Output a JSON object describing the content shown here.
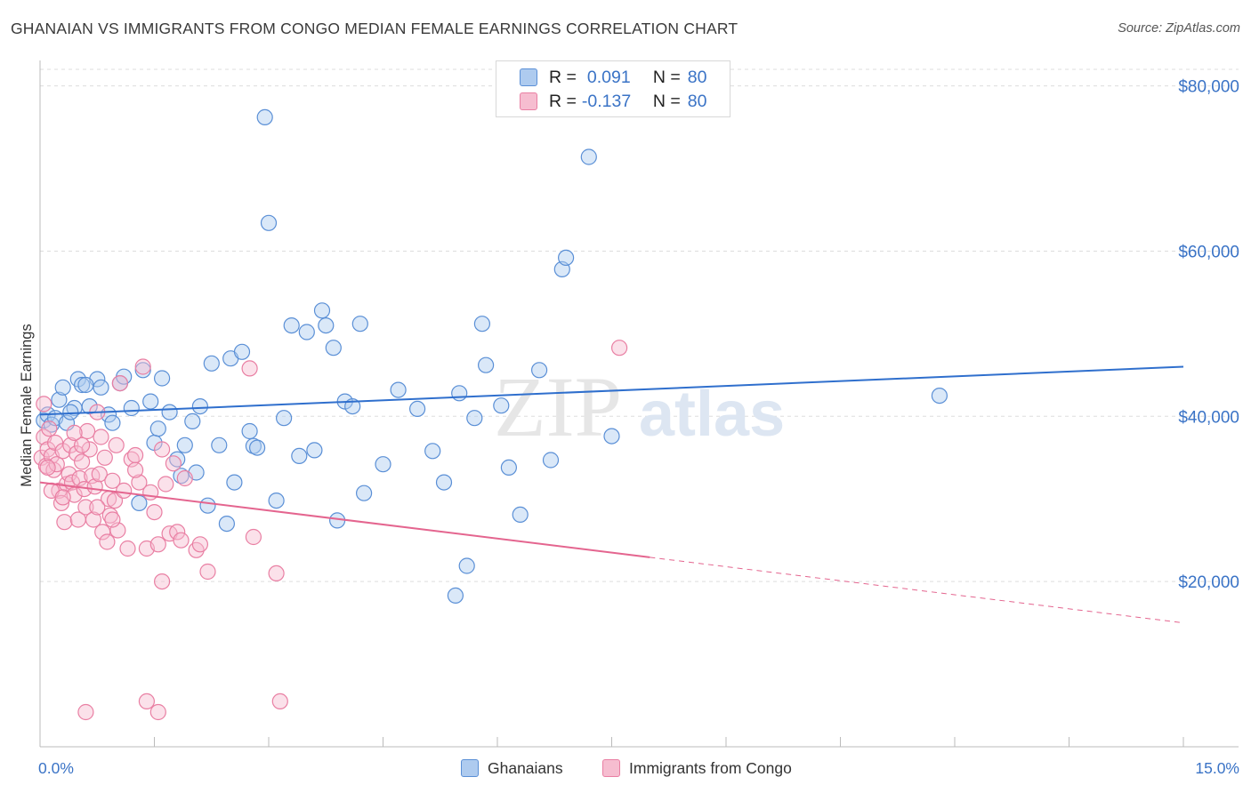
{
  "title": "GHANAIAN VS IMMIGRANTS FROM CONGO MEDIAN FEMALE EARNINGS CORRELATION CHART",
  "source": "Source: ZipAtlas.com",
  "watermark": {
    "part1": "ZIP",
    "part2": "atlas"
  },
  "legend": {
    "r_label": "R =",
    "n_label": "N =",
    "rows": [
      {
        "r_value": "0.091",
        "n_value": "80"
      },
      {
        "r_value": "-0.137",
        "n_value": "80"
      }
    ]
  },
  "bottom_legend": [
    "Ghanaians",
    "Immigrants from Congo"
  ],
  "colors": {
    "blue_fill": "#aecbef",
    "blue_stroke": "#5a8fd6",
    "blue_line": "#2f6fcd",
    "pink_fill": "#f6bdd0",
    "pink_stroke": "#e97fa3",
    "pink_line": "#e4658f",
    "axis_text": "#3a73c6",
    "grid": "#dddddd"
  },
  "chart_data": {
    "type": "scatter",
    "xlabel": "",
    "ylabel": "Median Female Earnings",
    "xlim": [
      0,
      15
    ],
    "ylim": [
      0,
      82000
    ],
    "x_tick_labels": [
      "0.0%",
      "15.0%"
    ],
    "y_ticks": [
      20000,
      40000,
      60000,
      80000
    ],
    "y_tick_labels": [
      "$20,000",
      "$40,000",
      "$60,000",
      "$80,000"
    ],
    "legend_position": "top-center",
    "series": [
      {
        "name": "Ghanaians",
        "r": 0.091,
        "n": 80,
        "trend": {
          "x": [
            0.0,
            15.0
          ],
          "y": [
            40200,
            46000
          ],
          "dashed_from": null
        },
        "points": [
          [
            0.05,
            39500
          ],
          [
            0.1,
            40200
          ],
          [
            0.15,
            39000
          ],
          [
            0.2,
            39800
          ],
          [
            0.25,
            42000
          ],
          [
            0.3,
            43500
          ],
          [
            0.35,
            39200
          ],
          [
            0.45,
            41000
          ],
          [
            0.5,
            44500
          ],
          [
            0.55,
            43800
          ],
          [
            0.65,
            41200
          ],
          [
            0.75,
            44500
          ],
          [
            0.8,
            43500
          ],
          [
            0.9,
            40200
          ],
          [
            0.95,
            39200
          ],
          [
            1.05,
            44000
          ],
          [
            1.1,
            44800
          ],
          [
            1.2,
            41000
          ],
          [
            1.3,
            29500
          ],
          [
            1.35,
            45600
          ],
          [
            1.45,
            41800
          ],
          [
            1.5,
            36800
          ],
          [
            1.55,
            38500
          ],
          [
            1.6,
            44600
          ],
          [
            1.7,
            40500
          ],
          [
            1.8,
            34800
          ],
          [
            1.85,
            32800
          ],
          [
            1.9,
            36500
          ],
          [
            2.0,
            39400
          ],
          [
            2.05,
            33200
          ],
          [
            2.1,
            41200
          ],
          [
            2.2,
            29200
          ],
          [
            2.25,
            46400
          ],
          [
            2.35,
            36500
          ],
          [
            2.45,
            27000
          ],
          [
            2.5,
            47000
          ],
          [
            2.55,
            32000
          ],
          [
            2.65,
            47800
          ],
          [
            2.75,
            38200
          ],
          [
            2.8,
            36400
          ],
          [
            2.85,
            36200
          ],
          [
            2.95,
            76200
          ],
          [
            3.0,
            63400
          ],
          [
            3.1,
            29800
          ],
          [
            3.2,
            39800
          ],
          [
            3.3,
            51000
          ],
          [
            3.4,
            35200
          ],
          [
            3.5,
            50200
          ],
          [
            3.6,
            35900
          ],
          [
            3.7,
            52800
          ],
          [
            3.75,
            51000
          ],
          [
            3.85,
            48300
          ],
          [
            3.9,
            27400
          ],
          [
            4.0,
            41800
          ],
          [
            4.1,
            41200
          ],
          [
            4.2,
            51200
          ],
          [
            4.25,
            30700
          ],
          [
            4.5,
            34200
          ],
          [
            4.7,
            43200
          ],
          [
            4.95,
            40900
          ],
          [
            5.15,
            35800
          ],
          [
            5.3,
            32000
          ],
          [
            5.45,
            18300
          ],
          [
            5.5,
            42800
          ],
          [
            5.6,
            21900
          ],
          [
            5.7,
            39800
          ],
          [
            5.8,
            51200
          ],
          [
            5.85,
            46200
          ],
          [
            6.05,
            41300
          ],
          [
            6.15,
            33800
          ],
          [
            6.3,
            28100
          ],
          [
            6.55,
            45600
          ],
          [
            6.7,
            34700
          ],
          [
            6.85,
            57800
          ],
          [
            6.9,
            59200
          ],
          [
            7.2,
            71400
          ],
          [
            7.5,
            37600
          ],
          [
            11.8,
            42500
          ],
          [
            0.6,
            43800
          ],
          [
            0.4,
            40500
          ]
        ]
      },
      {
        "name": "Immigrants from Congo",
        "r": -0.137,
        "n": 80,
        "trend": {
          "x": [
            0.0,
            15.0
          ],
          "y": [
            32000,
            15000
          ],
          "dashed_from": 8.0
        },
        "points": [
          [
            0.02,
            35000
          ],
          [
            0.05,
            37500
          ],
          [
            0.08,
            34000
          ],
          [
            0.1,
            36000
          ],
          [
            0.12,
            38500
          ],
          [
            0.15,
            35200
          ],
          [
            0.18,
            33500
          ],
          [
            0.2,
            36800
          ],
          [
            0.22,
            34200
          ],
          [
            0.25,
            31000
          ],
          [
            0.28,
            29500
          ],
          [
            0.3,
            35800
          ],
          [
            0.32,
            27200
          ],
          [
            0.35,
            31800
          ],
          [
            0.38,
            33000
          ],
          [
            0.4,
            36500
          ],
          [
            0.42,
            32000
          ],
          [
            0.45,
            30500
          ],
          [
            0.48,
            35500
          ],
          [
            0.5,
            27500
          ],
          [
            0.52,
            32500
          ],
          [
            0.55,
            34500
          ],
          [
            0.58,
            31200
          ],
          [
            0.6,
            29000
          ],
          [
            0.62,
            38200
          ],
          [
            0.65,
            36000
          ],
          [
            0.68,
            32800
          ],
          [
            0.7,
            27500
          ],
          [
            0.72,
            31500
          ],
          [
            0.75,
            40500
          ],
          [
            0.78,
            33000
          ],
          [
            0.8,
            37500
          ],
          [
            0.82,
            26000
          ],
          [
            0.85,
            35000
          ],
          [
            0.88,
            24800
          ],
          [
            0.9,
            30000
          ],
          [
            0.92,
            28000
          ],
          [
            0.95,
            32200
          ],
          [
            0.98,
            29800
          ],
          [
            1.0,
            36500
          ],
          [
            1.02,
            26200
          ],
          [
            1.05,
            44000
          ],
          [
            1.1,
            31000
          ],
          [
            1.15,
            24000
          ],
          [
            1.2,
            34800
          ],
          [
            1.25,
            35300
          ],
          [
            1.3,
            32000
          ],
          [
            1.35,
            46000
          ],
          [
            1.4,
            24000
          ],
          [
            1.45,
            30800
          ],
          [
            1.5,
            28400
          ],
          [
            1.55,
            24500
          ],
          [
            1.6,
            20000
          ],
          [
            1.65,
            31800
          ],
          [
            1.7,
            25800
          ],
          [
            1.75,
            34300
          ],
          [
            1.8,
            26000
          ],
          [
            1.85,
            25000
          ],
          [
            1.9,
            32500
          ],
          [
            2.05,
            23800
          ],
          [
            2.1,
            24500
          ],
          [
            2.2,
            21200
          ],
          [
            2.75,
            45800
          ],
          [
            2.8,
            25400
          ],
          [
            3.1,
            21000
          ],
          [
            3.15,
            5500
          ],
          [
            1.4,
            5500
          ],
          [
            1.55,
            4200
          ],
          [
            0.6,
            4200
          ],
          [
            7.6,
            48300
          ],
          [
            0.05,
            41500
          ],
          [
            0.1,
            33800
          ],
          [
            0.15,
            31000
          ],
          [
            0.3,
            30200
          ],
          [
            0.55,
            36500
          ],
          [
            0.75,
            29000
          ],
          [
            0.95,
            27500
          ],
          [
            1.25,
            33500
          ],
          [
            1.6,
            36000
          ],
          [
            0.45,
            38000
          ]
        ]
      }
    ]
  }
}
